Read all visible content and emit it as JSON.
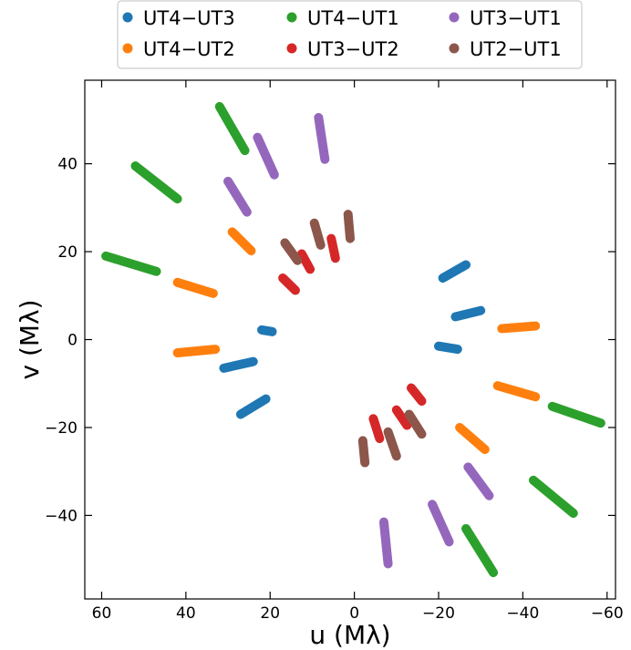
{
  "chart_data": {
    "type": "scatter",
    "xlabel": "u (Mλ)",
    "ylabel": "v (Mλ)",
    "xlim": [
      64,
      -62
    ],
    "ylim": [
      -59,
      59
    ],
    "x_ticks": [
      60,
      40,
      20,
      0,
      -20,
      -40,
      -60
    ],
    "y_ticks": [
      -40,
      -20,
      0,
      20,
      40
    ],
    "tick_labels": {
      "x": [
        "60",
        "40",
        "20",
        "0",
        "−20",
        "−40",
        "−60"
      ],
      "y": [
        "−40",
        "−20",
        "0",
        "20",
        "40"
      ]
    },
    "grid": false,
    "legend_position": "top-center",
    "series": [
      {
        "name": "UT4−UT3",
        "color": "#1f77b4",
        "segments": [
          [
            [
              22,
              2.2
            ],
            [
              19.5,
              1.8
            ]
          ],
          [
            [
              24,
              -5
            ],
            [
              31,
              -6.5
            ]
          ],
          [
            [
              21,
              -13.5
            ],
            [
              27,
              -17
            ]
          ],
          [
            [
              -20,
              -1.5
            ],
            [
              -24.5,
              -2.2
            ]
          ],
          [
            [
              -21,
              14
            ],
            [
              -26.5,
              17
            ]
          ],
          [
            [
              -24,
              5.2
            ],
            [
              -30,
              6.6
            ]
          ]
        ]
      },
      {
        "name": "UT4−UT2",
        "color": "#ff7f0e",
        "segments": [
          [
            [
              29,
              24.5
            ],
            [
              24.5,
              20.2
            ]
          ],
          [
            [
              42,
              13
            ],
            [
              33.5,
              10.5
            ]
          ],
          [
            [
              42,
              -3
            ],
            [
              33,
              -2.2
            ]
          ],
          [
            [
              -25,
              -20
            ],
            [
              -31,
              -25
            ]
          ],
          [
            [
              -34,
              -10.5
            ],
            [
              -43,
              -13
            ]
          ],
          [
            [
              -35,
              2.5
            ],
            [
              -43,
              3.1
            ]
          ]
        ]
      },
      {
        "name": "UT4−UT1",
        "color": "#2ca02c",
        "segments": [
          [
            [
              32,
              53
            ],
            [
              26,
              43
            ]
          ],
          [
            [
              52,
              39.5
            ],
            [
              42,
              32
            ]
          ],
          [
            [
              59,
              19
            ],
            [
              47,
              15.5
            ]
          ],
          [
            [
              -26.5,
              -43
            ],
            [
              -33,
              -53
            ]
          ],
          [
            [
              -42.5,
              -32
            ],
            [
              -52,
              -39.5
            ]
          ],
          [
            [
              -47,
              -15.2
            ],
            [
              -58.5,
              -19
            ]
          ]
        ]
      },
      {
        "name": "UT3−UT2",
        "color": "#d62728",
        "segments": [
          [
            [
              12.5,
              19.5
            ],
            [
              10.5,
              16
            ]
          ],
          [
            [
              17,
              14
            ],
            [
              14,
              11.2
            ]
          ],
          [
            [
              5.5,
              23
            ],
            [
              4.5,
              18.5
            ]
          ],
          [
            [
              -4.5,
              -18
            ],
            [
              -6,
              -22.5
            ]
          ],
          [
            [
              -10,
              -16
            ],
            [
              -12.5,
              -19.5
            ]
          ],
          [
            [
              -13.5,
              -11
            ],
            [
              -16,
              -14
            ]
          ]
        ]
      },
      {
        "name": "UT3−UT1",
        "color": "#9467bd",
        "segments": [
          [
            [
              23,
              46
            ],
            [
              19,
              37.5
            ]
          ],
          [
            [
              30,
              36
            ],
            [
              25.5,
              29
            ]
          ],
          [
            [
              8.5,
              50.5
            ],
            [
              7,
              41
            ]
          ],
          [
            [
              -7,
              -41.5
            ],
            [
              -8,
              -51
            ]
          ],
          [
            [
              -18.5,
              -37.5
            ],
            [
              -22.5,
              -46
            ]
          ],
          [
            [
              -27,
              -29
            ],
            [
              -32,
              -35.5
            ]
          ]
        ]
      },
      {
        "name": "UT2−UT1",
        "color": "#8c564b",
        "segments": [
          [
            [
              16.5,
              22
            ],
            [
              13.5,
              18
            ]
          ],
          [
            [
              9.5,
              26.5
            ],
            [
              8,
              21.5
            ]
          ],
          [
            [
              1.5,
              28.5
            ],
            [
              1,
              23
            ]
          ],
          [
            [
              -2,
              -23
            ],
            [
              -2.5,
              -28
            ]
          ],
          [
            [
              -8,
              -21
            ],
            [
              -10,
              -26.5
            ]
          ],
          [
            [
              -13,
              -17
            ],
            [
              -16,
              -21.5
            ]
          ]
        ]
      }
    ]
  }
}
